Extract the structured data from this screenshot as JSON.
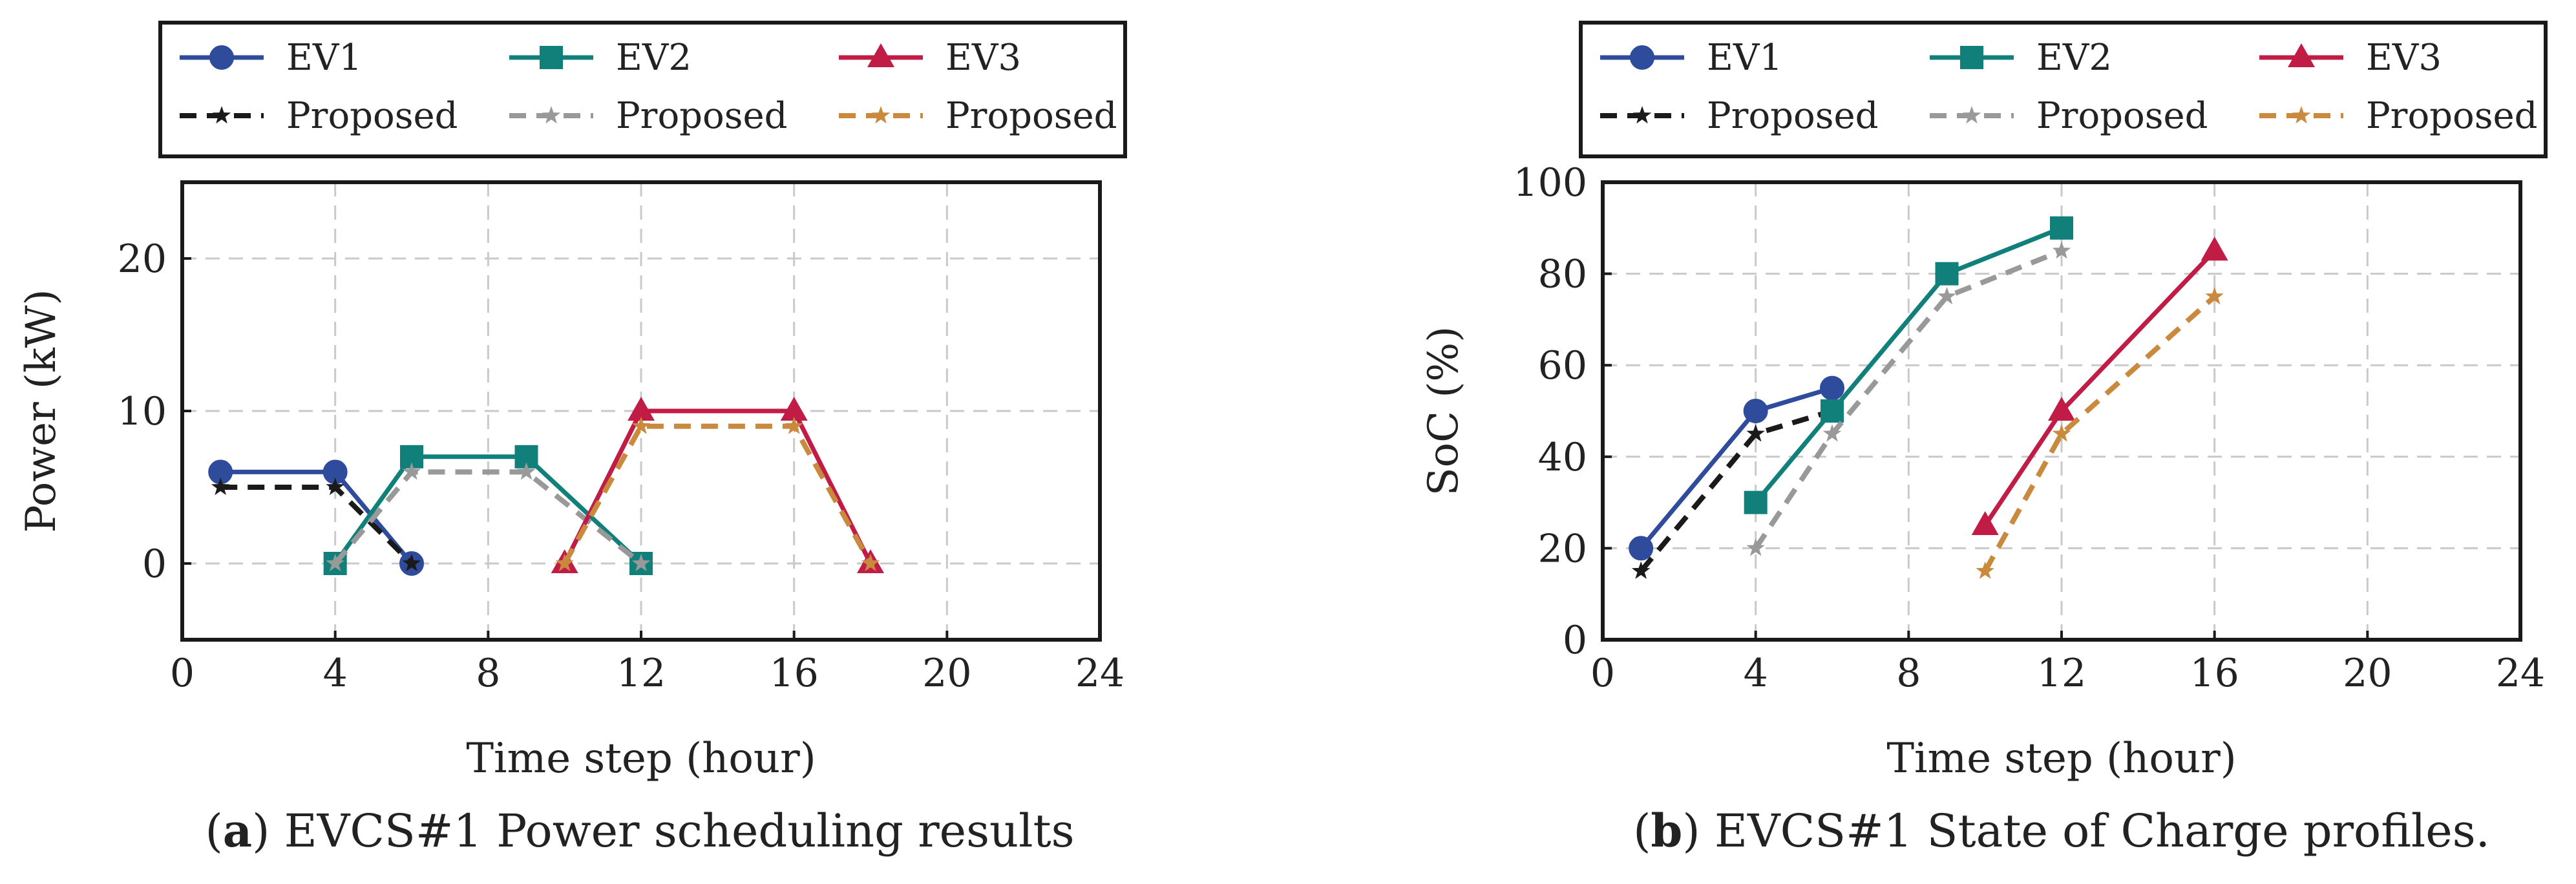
{
  "chart_data": [
    {
      "type": "line",
      "caption_prefix": "(",
      "caption_letter": "a",
      "caption_text": ") EVCS#1 Power scheduling results",
      "xlabel": "Time step (hour)",
      "ylabel": "Power (kW)",
      "xlim": [
        0,
        24
      ],
      "ylim": [
        -5,
        25
      ],
      "xticks": [
        0,
        4,
        8,
        12,
        16,
        20,
        24
      ],
      "yticks": [
        0,
        10,
        20
      ],
      "grid": true,
      "legend_position": "top",
      "series": [
        {
          "name": "EV1",
          "color": "#2f4b9c",
          "style": "solid",
          "marker": "circle",
          "points": [
            [
              1,
              6
            ],
            [
              4,
              6
            ],
            [
              6,
              0
            ]
          ]
        },
        {
          "name": "Proposed",
          "color": "#1a1a1a",
          "style": "dashed",
          "marker": "star",
          "points": [
            [
              1,
              5
            ],
            [
              4,
              5
            ],
            [
              6,
              0
            ]
          ]
        },
        {
          "name": "EV2",
          "color": "#12807a",
          "style": "solid",
          "marker": "square",
          "points": [
            [
              4,
              0
            ],
            [
              6,
              7
            ],
            [
              9,
              7
            ],
            [
              12,
              0
            ]
          ]
        },
        {
          "name": "Proposed",
          "color": "#999999",
          "style": "dashed",
          "marker": "star",
          "points": [
            [
              4,
              0
            ],
            [
              6,
              6
            ],
            [
              9,
              6
            ],
            [
              12,
              0
            ]
          ]
        },
        {
          "name": "EV3",
          "color": "#c01c45",
          "style": "solid",
          "marker": "triangle",
          "points": [
            [
              10,
              0
            ],
            [
              12,
              10
            ],
            [
              16,
              10
            ],
            [
              18,
              0
            ]
          ]
        },
        {
          "name": "Proposed",
          "color": "#c98a3e",
          "style": "dashed",
          "marker": "star",
          "points": [
            [
              10,
              0
            ],
            [
              12,
              9
            ],
            [
              16,
              9
            ],
            [
              18,
              0
            ]
          ]
        }
      ]
    },
    {
      "type": "line",
      "caption_prefix": "(",
      "caption_letter": "b",
      "caption_text": ") EVCS#1 State of Charge profiles.",
      "xlabel": "Time step (hour)",
      "ylabel": "SoC (%)",
      "xlim": [
        0,
        24
      ],
      "ylim": [
        0,
        100
      ],
      "xticks": [
        0,
        4,
        8,
        12,
        16,
        20,
        24
      ],
      "yticks": [
        0,
        20,
        40,
        60,
        80,
        100
      ],
      "grid": true,
      "legend_position": "top",
      "series": [
        {
          "name": "EV1",
          "color": "#2f4b9c",
          "style": "solid",
          "marker": "circle",
          "points": [
            [
              1,
              20
            ],
            [
              4,
              50
            ],
            [
              6,
              55
            ]
          ]
        },
        {
          "name": "Proposed",
          "color": "#1a1a1a",
          "style": "dashed",
          "marker": "star",
          "points": [
            [
              1,
              15
            ],
            [
              4,
              45
            ],
            [
              6,
              50
            ]
          ]
        },
        {
          "name": "EV2",
          "color": "#12807a",
          "style": "solid",
          "marker": "square",
          "points": [
            [
              4,
              30
            ],
            [
              6,
              50
            ],
            [
              9,
              80
            ],
            [
              12,
              90
            ]
          ]
        },
        {
          "name": "Proposed",
          "color": "#999999",
          "style": "dashed",
          "marker": "star",
          "points": [
            [
              4,
              20
            ],
            [
              6,
              45
            ],
            [
              9,
              75
            ],
            [
              12,
              85
            ]
          ]
        },
        {
          "name": "EV3",
          "color": "#c01c45",
          "style": "solid",
          "marker": "triangle",
          "points": [
            [
              10,
              25
            ],
            [
              12,
              50
            ],
            [
              16,
              85
            ]
          ]
        },
        {
          "name": "Proposed",
          "color": "#c98a3e",
          "style": "dashed",
          "marker": "star",
          "points": [
            [
              10,
              15
            ],
            [
              12,
              45
            ],
            [
              16,
              75
            ]
          ]
        }
      ]
    }
  ]
}
